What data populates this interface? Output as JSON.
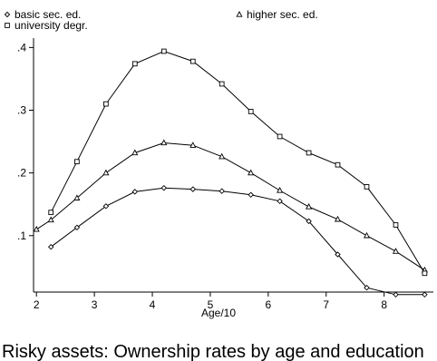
{
  "chart_data": {
    "type": "line",
    "title": "Risky assets: Ownership rates by age and education",
    "xlabel": "Age/10",
    "ylabel": "",
    "xlim": [
      1.95,
      8.85
    ],
    "ylim": [
      0.01,
      0.415
    ],
    "x_ticks": [
      2,
      3,
      4,
      5,
      6,
      7,
      8
    ],
    "y_ticks": [
      0.1,
      0.2,
      0.3,
      0.4
    ],
    "x_tick_labels": [
      "2",
      "3",
      "4",
      "5",
      "6",
      "7",
      "8"
    ],
    "y_tick_labels": [
      ".1",
      ".2",
      ".3",
      ".4"
    ],
    "grid": false,
    "legend_position": "top",
    "series": [
      {
        "name": "basic sec. ed.",
        "marker": "diamond",
        "color": "#000000",
        "x": [
          2.25,
          2.7,
          3.2,
          3.7,
          4.2,
          4.7,
          5.2,
          5.7,
          6.2,
          6.7,
          7.2,
          7.7,
          8.2,
          8.7
        ],
        "y": [
          0.082,
          0.113,
          0.147,
          0.17,
          0.176,
          0.174,
          0.171,
          0.165,
          0.155,
          0.123,
          0.07,
          0.017,
          0.006,
          0.006
        ]
      },
      {
        "name": "higher sec. ed.",
        "marker": "triangle",
        "color": "#000000",
        "x": [
          2.0,
          2.25,
          2.7,
          3.2,
          3.7,
          4.2,
          4.7,
          5.2,
          5.7,
          6.2,
          6.7,
          7.2,
          7.7,
          8.2,
          8.7
        ],
        "y": [
          0.11,
          0.125,
          0.16,
          0.2,
          0.232,
          0.248,
          0.244,
          0.226,
          0.2,
          0.172,
          0.146,
          0.126,
          0.1,
          0.075,
          0.045
        ]
      },
      {
        "name": "university degr.",
        "marker": "square",
        "color": "#000000",
        "x": [
          2.25,
          2.7,
          3.2,
          3.7,
          4.2,
          4.7,
          5.2,
          5.7,
          6.2,
          6.7,
          7.2,
          7.7,
          8.2,
          8.7
        ],
        "y": [
          0.137,
          0.218,
          0.31,
          0.374,
          0.394,
          0.378,
          0.342,
          0.298,
          0.258,
          0.232,
          0.213,
          0.178,
          0.117,
          0.04
        ]
      }
    ]
  }
}
